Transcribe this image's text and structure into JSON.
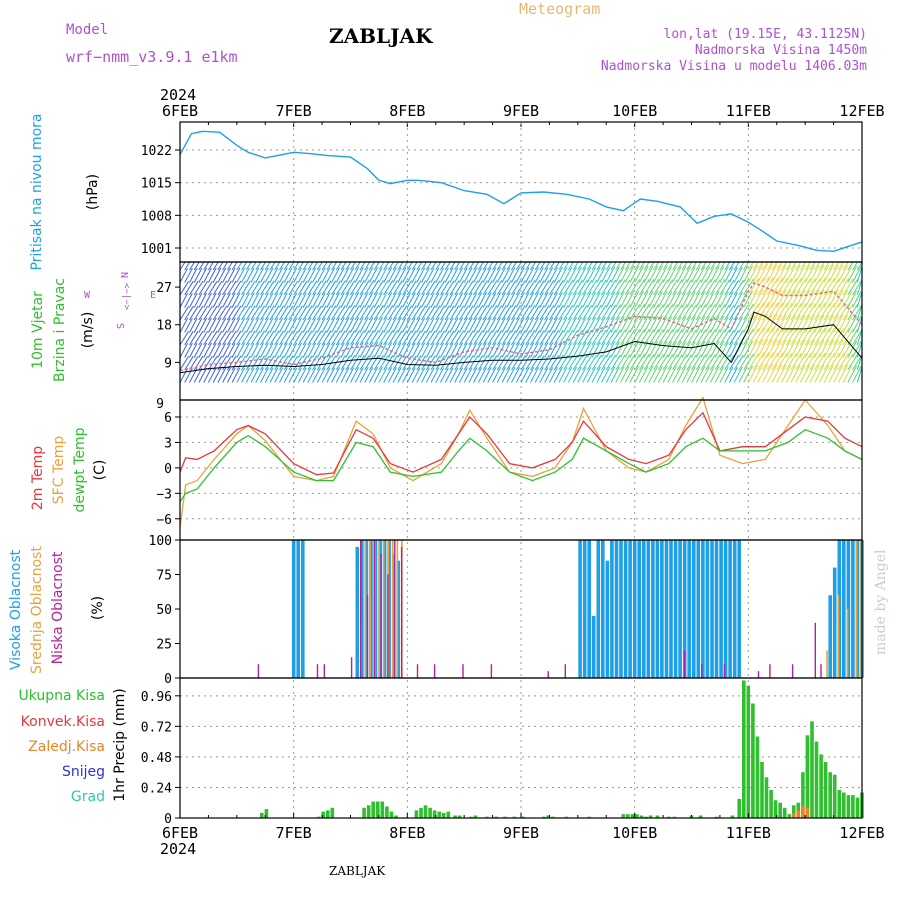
{
  "header": {
    "model_label": "Model",
    "model_name": "wrf−nmm_v3.9.1  e1km",
    "station": "ZABLJAK",
    "meteogram": "Meteogram",
    "lonlat": "lon,lat (19.15E, 43.1125N)",
    "altitude": "Nadmorska Visina 1450m",
    "model_altitude": "Nadmorska Visina u modelu 1406.03m",
    "footer_station": "ZABLJAK",
    "watermark": "made by Angel"
  },
  "time_axis": {
    "year": "2024",
    "labels": [
      "6FEB",
      "7FEB",
      "8FEB",
      "9FEB",
      "10FEB",
      "11FEB",
      "12FEB"
    ],
    "days": [
      0,
      1,
      2,
      3,
      4,
      5,
      6
    ]
  },
  "colors": {
    "pressure": "#1fa0e6",
    "temp2m": "#e8373a",
    "sfc_temp": "#e6a33c",
    "dewpoint": "#2fbf2f",
    "high_cloud": "#1fa0e6",
    "mid_cloud": "#e6a33c",
    "low_cloud": "#b41f9a",
    "total_precip": "#2fbf2f",
    "conv_precip": "#e8373a",
    "frozen_precip": "#e6862a",
    "snow": "#3030d8",
    "hail": "#2fc8b0",
    "grid": "#999999",
    "model_purple": "#b050d0",
    "meteogram_orange": "#e8b870"
  },
  "chart_data": [
    {
      "type": "line",
      "panel": "pressure",
      "ylabel_rotated": "Pritisak na nivou mora",
      "unit": "(hPa)",
      "ylim": [
        998,
        1028
      ],
      "yticks": [
        1001,
        1008,
        1015,
        1022
      ],
      "grid": true,
      "series": [
        {
          "x": [
            0,
            0.1,
            0.2,
            0.35,
            0.5,
            0.6,
            0.75,
            1.0,
            1.15,
            1.3,
            1.5,
            1.65,
            1.75,
            1.85,
            2.0,
            2.1,
            2.3,
            2.5,
            2.7,
            2.85,
            3.0,
            3.2,
            3.4,
            3.6,
            3.75,
            3.9,
            4.05,
            4.2,
            4.4,
            4.55,
            4.7,
            4.85,
            5.0,
            5.1,
            5.25,
            5.45,
            5.6,
            5.75,
            5.9,
            6.0
          ],
          "values": [
            1021,
            1025.5,
            1026,
            1025.8,
            1023,
            1021.5,
            1020.3,
            1021.5,
            1021.2,
            1020.8,
            1020.5,
            1018,
            1015.5,
            1014.8,
            1015.5,
            1015.5,
            1015,
            1013.3,
            1012.5,
            1010.5,
            1012.8,
            1013,
            1012.5,
            1011.5,
            1009.8,
            1009,
            1011.5,
            1011,
            1009.8,
            1006.3,
            1007.8,
            1008.3,
            1006.5,
            1005,
            1002.5,
            1001.5,
            1000.5,
            1000.3,
            1001.5,
            1002.3
          ]
        }
      ]
    },
    {
      "type": "line",
      "panel": "wind",
      "ylabel_rotated_1": "10m Vjetar",
      "ylabel_rotated_2": "Brzina i Pravac",
      "unit": "(m/s)",
      "ylim": [
        0,
        33
      ],
      "yticks": [
        9,
        18,
        27
      ],
      "compass": {
        "n": "N",
        "w": "W",
        "e": "E",
        "s": "S"
      },
      "grid": true,
      "series": [
        {
          "name": "mean",
          "x": [
            0,
            0.25,
            0.5,
            0.75,
            1.0,
            1.25,
            1.5,
            1.75,
            2.0,
            2.25,
            2.5,
            2.75,
            3.0,
            3.25,
            3.5,
            3.75,
            4.0,
            4.25,
            4.5,
            4.7,
            4.85,
            5.0,
            5.05,
            5.15,
            5.3,
            5.5,
            5.75,
            6.0
          ],
          "values": [
            6.5,
            7.5,
            8,
            8.3,
            8,
            8.5,
            9.5,
            10,
            8.5,
            8.3,
            9,
            9.5,
            9.5,
            9.8,
            10.5,
            11.5,
            14,
            13,
            12.5,
            13.5,
            9,
            17,
            21,
            20,
            17,
            17,
            18,
            10
          ]
        },
        {
          "name": "gust",
          "x": [
            0,
            0.25,
            0.5,
            0.75,
            1.0,
            1.25,
            1.5,
            1.75,
            2.0,
            2.25,
            2.5,
            2.75,
            3.0,
            3.25,
            3.5,
            3.75,
            4.0,
            4.25,
            4.5,
            4.7,
            4.85,
            5.0,
            5.05,
            5.15,
            5.3,
            5.5,
            5.75,
            6.0
          ],
          "values": [
            7,
            8.5,
            9,
            9.8,
            8.5,
            10,
            12.5,
            13,
            10,
            9,
            11.5,
            12.5,
            11,
            12,
            15.5,
            17.5,
            20,
            19.5,
            17,
            19.5,
            17,
            26,
            28,
            27,
            25,
            25,
            26,
            18
          ]
        }
      ]
    },
    {
      "type": "line",
      "panel": "temperature",
      "ylabel_rotated_1": "2m Temp",
      "ylabel_rotated_2": "SFC Temp",
      "ylabel_rotated_3": "dewpt Temp",
      "unit": "(C)",
      "ylim": [
        -8.5,
        8
      ],
      "yticks": [
        -6,
        -3,
        0,
        3,
        6
      ],
      "grid": true,
      "series": [
        {
          "name": "2m Temp",
          "x": [
            0,
            0.05,
            0.15,
            0.3,
            0.5,
            0.6,
            0.75,
            1.0,
            1.2,
            1.35,
            1.55,
            1.7,
            1.85,
            2.05,
            2.3,
            2.45,
            2.55,
            2.7,
            2.9,
            3.1,
            3.3,
            3.45,
            3.55,
            3.75,
            3.95,
            4.1,
            4.3,
            4.45,
            4.6,
            4.75,
            4.95,
            5.15,
            5.35,
            5.5,
            5.7,
            5.85,
            6.0
          ],
          "values": [
            -0.5,
            1.2,
            1,
            2,
            4.5,
            5,
            4,
            0.5,
            -0.8,
            -0.6,
            4.5,
            3.5,
            0.5,
            -0.5,
            1,
            4,
            6,
            4,
            0.5,
            0,
            1,
            3,
            5.5,
            2.5,
            1,
            0.5,
            1.5,
            4.5,
            6.5,
            2,
            2.5,
            2.5,
            4.5,
            6,
            5.5,
            3.5,
            2.5
          ]
        },
        {
          "name": "SFC Temp",
          "x": [
            0,
            0.05,
            0.15,
            0.3,
            0.5,
            0.6,
            0.75,
            1.0,
            1.2,
            1.35,
            1.55,
            1.7,
            1.85,
            2.05,
            2.3,
            2.45,
            2.55,
            2.7,
            2.9,
            3.1,
            3.3,
            3.45,
            3.55,
            3.75,
            3.95,
            4.1,
            4.3,
            4.45,
            4.6,
            4.75,
            4.95,
            5.15,
            5.35,
            5.5,
            5.7,
            5.85,
            6.0
          ],
          "values": [
            -7,
            -2,
            -1.5,
            1,
            4,
            5,
            3.2,
            -1,
            -1.5,
            -1,
            5.5,
            4,
            0,
            -1.5,
            0.5,
            4,
            6.8,
            3.5,
            -0.5,
            -1,
            0,
            3,
            7,
            2,
            0,
            -0.5,
            1,
            5,
            8.3,
            1.5,
            0.5,
            1,
            5,
            8,
            5,
            2,
            1
          ]
        },
        {
          "name": "dewpt Temp",
          "x": [
            0,
            0.05,
            0.15,
            0.3,
            0.5,
            0.6,
            0.75,
            1.0,
            1.2,
            1.35,
            1.55,
            1.7,
            1.85,
            2.05,
            2.3,
            2.45,
            2.55,
            2.7,
            2.9,
            3.1,
            3.3,
            3.45,
            3.55,
            3.75,
            3.95,
            4.1,
            4.3,
            4.45,
            4.6,
            4.75,
            4.95,
            5.15,
            5.35,
            5.5,
            5.7,
            5.85,
            6.0
          ],
          "values": [
            -4,
            -3,
            -2.5,
            0,
            3,
            3.8,
            2.5,
            -0.5,
            -1.5,
            -1.5,
            3,
            2.5,
            -0.5,
            -1,
            -0.5,
            2,
            3.5,
            2,
            -0.5,
            -1.5,
            -0.5,
            1,
            3.5,
            2,
            0.5,
            -0.5,
            0.5,
            2.5,
            3.5,
            2,
            2,
            2,
            3,
            4.5,
            3.5,
            2,
            1
          ]
        }
      ]
    },
    {
      "type": "bar",
      "panel": "cloud",
      "ylabel_rotated_1": "Visoka Oblacnost",
      "ylabel_rotated_2": "Srednja Oblacnost",
      "ylabel_rotated_3": "Niska  Oblacnost",
      "unit": "(%)",
      "ylim": [
        0,
        100
      ],
      "yticks": [
        0,
        25,
        50,
        75,
        100
      ],
      "grid": true,
      "series": [
        {
          "name": "Visoka Oblacnost",
          "x": [
            1.0,
            1.04,
            1.08,
            1.56,
            1.6,
            1.64,
            1.68,
            1.72,
            1.76,
            1.8,
            1.84,
            1.88,
            1.92,
            3.52,
            3.56,
            3.6,
            3.64,
            3.68,
            3.72,
            3.76,
            3.8,
            3.84,
            3.88,
            3.92,
            3.96,
            4.0,
            4.04,
            4.08,
            4.12,
            4.16,
            4.2,
            4.24,
            4.28,
            4.32,
            4.36,
            4.4,
            4.44,
            4.48,
            4.52,
            4.56,
            4.6,
            4.64,
            4.68,
            4.72,
            4.76,
            4.8,
            4.84,
            4.88,
            4.92,
            5.72,
            5.76,
            5.8,
            5.84,
            5.88,
            5.92,
            5.96,
            6.0
          ],
          "values": [
            100,
            100,
            100,
            95,
            100,
            100,
            100,
            100,
            100,
            100,
            100,
            90,
            85,
            100,
            100,
            100,
            45,
            100,
            100,
            85,
            100,
            100,
            100,
            100,
            100,
            100,
            100,
            100,
            100,
            100,
            100,
            100,
            100,
            100,
            100,
            100,
            100,
            100,
            100,
            100,
            100,
            100,
            100,
            100,
            100,
            100,
            100,
            100,
            100,
            60,
            80,
            100,
            100,
            100,
            100,
            100,
            100
          ]
        },
        {
          "name": "Srednja Oblacnost",
          "x": [
            1.58,
            1.62,
            1.66,
            1.7,
            1.74,
            1.78,
            1.82,
            1.86,
            1.9,
            1.94,
            5.68,
            5.78,
            5.86,
            5.94,
            5.98
          ],
          "values": [
            40,
            100,
            100,
            100,
            100,
            100,
            100,
            100,
            100,
            100,
            20,
            60,
            50,
            100,
            100
          ]
        },
        {
          "name": "Niska  Oblacnost",
          "x": [
            0.7,
            1.22,
            1.28,
            1.52,
            1.6,
            1.66,
            1.72,
            1.78,
            1.84,
            1.9,
            1.96,
            2.1,
            2.25,
            2.5,
            2.75,
            3.25,
            3.4,
            4.45,
            4.6,
            4.8,
            5.1,
            5.2,
            5.4,
            5.6,
            5.65
          ],
          "values": [
            10,
            10,
            10,
            15,
            100,
            60,
            100,
            90,
            75,
            100,
            95,
            10,
            10,
            10,
            10,
            5,
            10,
            20,
            10,
            10,
            5,
            10,
            10,
            40,
            10
          ]
        }
      ]
    },
    {
      "type": "bar",
      "panel": "precipitation",
      "legend": [
        "Ukupna Kisa",
        "Konvek.Kisa",
        "Zaledj.Kisa",
        "Snijeg",
        "Grad"
      ],
      "ylabel_rotated": "1hr Precip (mm)",
      "ylim": [
        0,
        1.1
      ],
      "yticks": [
        0,
        0.24,
        0.48,
        0.72,
        0.96
      ],
      "grid": true,
      "series": [
        {
          "name": "Ukupna Kisa",
          "x": [
            0.72,
            0.76,
            1.22,
            1.26,
            1.3,
            1.34,
            1.62,
            1.66,
            1.7,
            1.74,
            1.78,
            1.82,
            1.86,
            1.9,
            2.08,
            2.12,
            2.16,
            2.2,
            2.24,
            2.28,
            2.32,
            2.36,
            2.42,
            2.46,
            2.56,
            2.6,
            2.7,
            2.78,
            2.86,
            2.94,
            3.02,
            3.2,
            3.24,
            3.28,
            3.4,
            3.6,
            3.9,
            3.94,
            3.98,
            4.02,
            4.06,
            4.1,
            4.14,
            4.2,
            4.3,
            4.35,
            4.5,
            4.58,
            4.72,
            4.86,
            4.92,
            4.96,
            5.0,
            5.04,
            5.08,
            5.12,
            5.16,
            5.2,
            5.24,
            5.28,
            5.32,
            5.36,
            5.4,
            5.44,
            5.48,
            5.52,
            5.56,
            5.6,
            5.64,
            5.68,
            5.72,
            5.76,
            5.8,
            5.84,
            5.88,
            5.92,
            5.96,
            6.0
          ],
          "values": [
            0.04,
            0.07,
            0.01,
            0.05,
            0.06,
            0.08,
            0.08,
            0.1,
            0.13,
            0.13,
            0.13,
            0.09,
            0.05,
            0.02,
            0.06,
            0.08,
            0.1,
            0.08,
            0.06,
            0.05,
            0.04,
            0.05,
            0.02,
            0.02,
            0.01,
            0.02,
            0.01,
            0.01,
            0.01,
            0.01,
            0.01,
            0.01,
            0.02,
            0.01,
            0.01,
            0.01,
            0.03,
            0.03,
            0.03,
            0.03,
            0.02,
            0.01,
            0.02,
            0.02,
            0.01,
            0.01,
            0.02,
            0.02,
            0.01,
            0.02,
            0.15,
            1.08,
            1.04,
            0.9,
            0.64,
            0.44,
            0.32,
            0.22,
            0.14,
            0.12,
            0.08,
            0.03,
            0.1,
            0.12,
            0.36,
            0.65,
            0.76,
            0.6,
            0.5,
            0.44,
            0.36,
            0.34,
            0.22,
            0.2,
            0.18,
            0.18,
            0.16,
            0.2
          ]
        },
        {
          "name": "Zaledj.Kisa",
          "x": [
            5.4,
            5.44,
            5.48,
            5.52
          ],
          "values": [
            0.04,
            0.06,
            0.1,
            0.08
          ]
        }
      ]
    }
  ]
}
